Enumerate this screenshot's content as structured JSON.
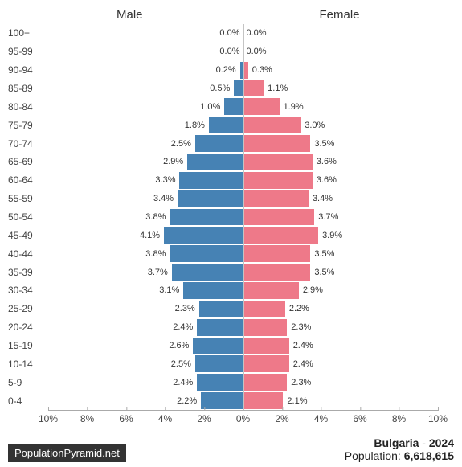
{
  "chart": {
    "type": "population-pyramid",
    "male_label": "Male",
    "female_label": "Female",
    "male_color": "#4682b4",
    "female_color": "#ee7989",
    "max_pct": 10,
    "x_ticks": [
      10,
      8,
      6,
      4,
      2,
      0,
      2,
      4,
      6,
      8,
      10
    ],
    "x_tick_suffix": "%",
    "age_groups": [
      {
        "label": "100+",
        "male": 0.0,
        "female": 0.0
      },
      {
        "label": "95-99",
        "male": 0.0,
        "female": 0.0
      },
      {
        "label": "90-94",
        "male": 0.2,
        "female": 0.3
      },
      {
        "label": "85-89",
        "male": 0.5,
        "female": 1.1
      },
      {
        "label": "80-84",
        "male": 1.0,
        "female": 1.9
      },
      {
        "label": "75-79",
        "male": 1.8,
        "female": 3.0
      },
      {
        "label": "70-74",
        "male": 2.5,
        "female": 3.5
      },
      {
        "label": "65-69",
        "male": 2.9,
        "female": 3.6
      },
      {
        "label": "60-64",
        "male": 3.3,
        "female": 3.6
      },
      {
        "label": "55-59",
        "male": 3.4,
        "female": 3.4
      },
      {
        "label": "50-54",
        "male": 3.8,
        "female": 3.7
      },
      {
        "label": "45-49",
        "male": 4.1,
        "female": 3.9
      },
      {
        "label": "40-44",
        "male": 3.8,
        "female": 3.5
      },
      {
        "label": "35-39",
        "male": 3.7,
        "female": 3.5
      },
      {
        "label": "30-34",
        "male": 3.1,
        "female": 2.9
      },
      {
        "label": "25-29",
        "male": 2.3,
        "female": 2.2
      },
      {
        "label": "20-24",
        "male": 2.4,
        "female": 2.3
      },
      {
        "label": "15-19",
        "male": 2.6,
        "female": 2.4
      },
      {
        "label": "10-14",
        "male": 2.5,
        "female": 2.4
      },
      {
        "label": "5-9",
        "male": 2.4,
        "female": 2.3
      },
      {
        "label": "0-4",
        "male": 2.2,
        "female": 2.1
      }
    ],
    "label_fontsize": 12,
    "value_fontsize": 11,
    "header_fontsize": 15
  },
  "footer": {
    "brand": "PopulationPyramid.net",
    "country": "Bulgaria",
    "year": "2024",
    "sep": " - ",
    "population_label": "Population: ",
    "population_value": "6,618,615"
  }
}
